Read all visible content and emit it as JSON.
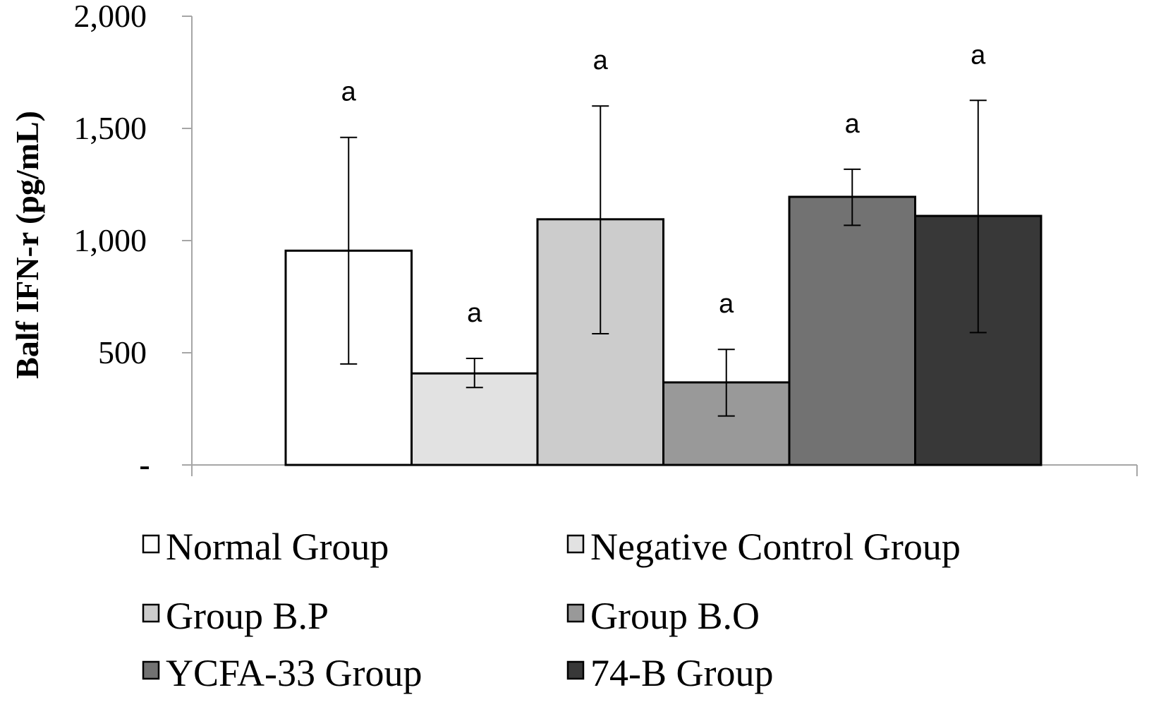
{
  "chart_data": {
    "type": "bar",
    "title": "",
    "xlabel": "",
    "ylabel": "Balf IFN-r (pg/mL)",
    "ylim": [
      0,
      2000
    ],
    "yticks": [
      {
        "value": 0,
        "label": "-"
      },
      {
        "value": 500,
        "label": "500"
      },
      {
        "value": 1000,
        "label": "1,000"
      },
      {
        "value": 1500,
        "label": "1,500"
      },
      {
        "value": 2000,
        "label": "2,000"
      }
    ],
    "grid": false,
    "legend_position": "bottom",
    "series": [
      {
        "name": "Normal Group",
        "value": 955,
        "error_low": 450,
        "error_high": 1460,
        "significance": "a",
        "color": "#ffffff"
      },
      {
        "name": "Negative Control Group",
        "value": 408,
        "error_low": 345,
        "error_high": 475,
        "significance": "a",
        "color": "#e2e2e2"
      },
      {
        "name": "Group B.P",
        "value": 1095,
        "error_low": 585,
        "error_high": 1600,
        "significance": "a",
        "color": "#cccccc"
      },
      {
        "name": "Group B.O",
        "value": 368,
        "error_low": 218,
        "error_high": 515,
        "significance": "a",
        "color": "#999999"
      },
      {
        "name": "YCFA-33 Group",
        "value": 1195,
        "error_low": 1068,
        "error_high": 1318,
        "significance": "a",
        "color": "#727272"
      },
      {
        "name": "74-B Group",
        "value": 1110,
        "error_low": 590,
        "error_high": 1625,
        "significance": "a",
        "color": "#383838"
      }
    ]
  }
}
